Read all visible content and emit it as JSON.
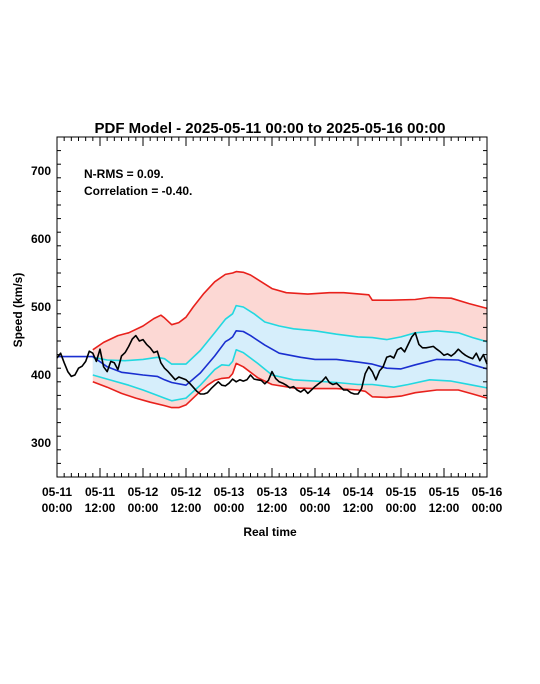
{
  "chart_data": {
    "type": "line",
    "title": "PDF Model - 2025-05-11 00:00 to 2025-05-16 00:00",
    "xlabel": "Real time",
    "ylabel": "Speed (km/s)",
    "xlim": [
      0,
      120
    ],
    "ylim": [
      250,
      750
    ],
    "yticks": [
      300,
      400,
      500,
      600,
      700
    ],
    "xticks": [
      {
        "x": 0,
        "line1": "05-11",
        "line2": "00:00"
      },
      {
        "x": 12,
        "line1": "05-11",
        "line2": "12:00"
      },
      {
        "x": 24,
        "line1": "05-12",
        "line2": "00:00"
      },
      {
        "x": 36,
        "line1": "05-12",
        "line2": "12:00"
      },
      {
        "x": 48,
        "line1": "05-13",
        "line2": "00:00"
      },
      {
        "x": 60,
        "line1": "05-13",
        "line2": "12:00"
      },
      {
        "x": 72,
        "line1": "05-14",
        "line2": "00:00"
      },
      {
        "x": 84,
        "line1": "05-14",
        "line2": "12:00"
      },
      {
        "x": 96,
        "line1": "05-15",
        "line2": "00:00"
      },
      {
        "x": 108,
        "line1": "05-15",
        "line2": "12:00"
      },
      {
        "x": 120,
        "line1": "05-16",
        "line2": "00:00"
      }
    ],
    "annotations": [
      "N-RMS = 0.09.",
      "Correlation = -0.40."
    ],
    "colors": {
      "outer_band_fill": "#fcd8d4",
      "outer_band_line": "#e8211c",
      "inner_band_fill": "#d6eefb",
      "inner_band_line": "#22d8e0",
      "model": "#1a2fd0",
      "observed": "#000000"
    },
    "series": {
      "outer_upper": {
        "x": [
          10,
          13,
          17,
          20,
          24,
          27,
          29,
          30,
          32,
          34,
          36,
          38,
          41,
          44,
          47,
          49,
          50,
          52,
          54,
          57,
          60,
          64,
          70,
          76,
          80,
          87,
          88,
          93,
          100,
          104,
          110,
          115,
          120
        ],
        "y": [
          437,
          448,
          458,
          462,
          472,
          483,
          488,
          484,
          474,
          477,
          485,
          500,
          520,
          537,
          548,
          550,
          552,
          551,
          547,
          537,
          527,
          521,
          519,
          521,
          521,
          518,
          510,
          510,
          511,
          514,
          513,
          505,
          498
        ]
      },
      "inner_upper": {
        "x": [
          10,
          14,
          19,
          24,
          28,
          30,
          32,
          36,
          40,
          44,
          47,
          49,
          50,
          52,
          55,
          58,
          62,
          66,
          72,
          78,
          84,
          88,
          92,
          96,
          100,
          106,
          112,
          116,
          120
        ],
        "y": [
          426,
          422,
          421,
          423,
          426,
          424,
          416,
          416,
          436,
          462,
          482,
          490,
          502,
          500,
          490,
          478,
          472,
          468,
          465,
          460,
          456,
          455,
          452,
          456,
          462,
          465,
          462,
          455,
          449
        ]
      },
      "model": {
        "x": [
          0,
          10,
          14,
          18,
          24,
          28,
          30,
          32,
          36,
          40,
          44,
          47,
          48,
          49,
          50,
          52,
          54,
          58,
          62,
          68,
          72,
          78,
          84,
          88,
          92,
          96,
          100,
          106,
          112,
          116,
          120
        ],
        "y": [
          427,
          427,
          412,
          404,
          400,
          398,
          393,
          389,
          385,
          403,
          428,
          449,
          452,
          456,
          465,
          464,
          458,
          444,
          432,
          426,
          423,
          423,
          419,
          416,
          410,
          409,
          415,
          423,
          422,
          415,
          409
        ]
      },
      "inner_lower": {
        "x": [
          10,
          14,
          20,
          24,
          28,
          30,
          32,
          36,
          40,
          44,
          46,
          48,
          49,
          50,
          52,
          56,
          60,
          66,
          72,
          78,
          84,
          88,
          94,
          98,
          104,
          110,
          116,
          120
        ],
        "y": [
          400,
          394,
          385,
          378,
          370,
          366,
          362,
          366,
          385,
          408,
          415,
          414,
          420,
          437,
          433,
          417,
          400,
          393,
          391,
          389,
          386,
          386,
          382,
          386,
          393,
          391,
          385,
          381
        ]
      },
      "outer_lower": {
        "x": [
          10,
          14,
          18,
          22,
          26,
          30,
          32,
          34,
          36,
          38,
          40,
          42,
          44,
          46,
          48,
          49,
          50,
          52,
          56,
          60,
          66,
          72,
          78,
          84,
          86,
          88,
          92,
          96,
          100,
          106,
          112,
          116,
          120
        ],
        "y": [
          390,
          382,
          373,
          366,
          360,
          355,
          352,
          352,
          356,
          366,
          376,
          385,
          392,
          395,
          396,
          402,
          417,
          412,
          396,
          386,
          381,
          380,
          380,
          378,
          376,
          368,
          367,
          369,
          374,
          378,
          378,
          372,
          366
        ]
      },
      "observed": {
        "x": [
          0,
          1,
          2,
          3,
          4,
          5,
          6,
          7,
          8,
          9,
          10,
          11,
          12,
          13,
          14,
          15,
          16,
          17,
          18,
          19,
          20,
          21,
          22,
          23,
          24,
          25,
          26,
          27,
          28,
          29,
          30,
          31,
          32,
          33,
          34,
          35,
          36,
          37,
          38,
          39,
          40,
          41,
          42,
          43,
          44,
          45,
          46,
          47,
          48,
          49,
          50,
          51,
          52,
          53,
          54,
          55,
          56,
          57,
          58,
          59,
          60,
          61,
          62,
          63,
          64,
          65,
          66,
          67,
          68,
          69,
          70,
          71,
          72,
          73,
          74,
          75,
          76,
          77,
          78,
          79,
          80,
          81,
          82,
          83,
          84,
          85,
          86,
          87,
          88,
          89,
          90,
          91,
          92,
          93,
          94,
          95,
          96,
          97,
          98,
          99,
          100,
          101,
          102,
          103,
          104,
          105,
          106,
          107,
          108,
          109,
          110,
          111,
          112,
          113,
          114,
          115,
          116,
          117,
          118,
          119,
          120
        ],
        "y": [
          425,
          432,
          418,
          405,
          398,
          400,
          410,
          413,
          420,
          435,
          432,
          420,
          438,
          412,
          405,
          420,
          418,
          408,
          428,
          433,
          442,
          453,
          458,
          450,
          452,
          445,
          440,
          433,
          435,
          418,
          410,
          405,
          399,
          393,
          397,
          395,
          393,
          388,
          382,
          376,
          372,
          372,
          374,
          380,
          385,
          390,
          385,
          384,
          388,
          394,
          390,
          393,
          391,
          393,
          400,
          394,
          393,
          392,
          387,
          392,
          405,
          395,
          390,
          388,
          385,
          381,
          383,
          378,
          375,
          379,
          373,
          378,
          383,
          387,
          391,
          397,
          389,
          386,
          388,
          383,
          378,
          378,
          374,
          372,
          372,
          380,
          402,
          412,
          405,
          393,
          406,
          412,
          426,
          428,
          425,
          437,
          440,
          434,
          445,
          456,
          462,
          445,
          440,
          440,
          441,
          442,
          438,
          434,
          429,
          431,
          428,
          432,
          438,
          433,
          429,
          426,
          424,
          432,
          421,
          430,
          416
        ]
      }
    }
  }
}
